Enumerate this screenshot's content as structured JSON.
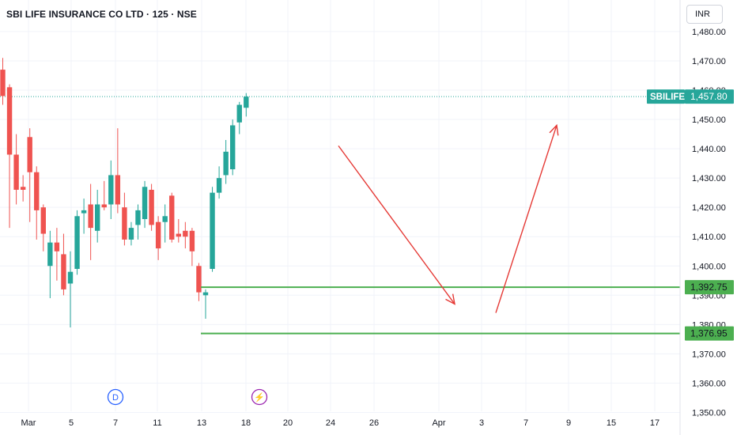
{
  "header": {
    "title": "SBI LIFE INSURANCE CO LTD · 125 · NSE",
    "currency": "INR"
  },
  "colors": {
    "up": "#26a69a",
    "down": "#ef5350",
    "level": "#4caf50",
    "arrow": "#e53935",
    "grid": "#f0f3fa",
    "axis_text": "#131722",
    "event_blue": "#2962ff",
    "event_purple": "#9c27b0"
  },
  "events": [
    {
      "icon": "dividend-event-icon",
      "label": "D"
    },
    {
      "icon": "lightning-event-icon",
      "label": "⚡"
    }
  ],
  "chart_data": {
    "type": "candlestick",
    "symbol": "SBILIFE",
    "last_price": "1,457.80",
    "ylim": [
      1345,
      1487
    ],
    "grid": true,
    "y_ticks": [
      {
        "value": 1350,
        "label": "1,350.00"
      },
      {
        "value": 1360,
        "label": "1,360.00"
      },
      {
        "value": 1370,
        "label": "1,370.00"
      },
      {
        "value": 1380,
        "label": "1,380.00"
      },
      {
        "value": 1390,
        "label": "1,390.00"
      },
      {
        "value": 1400,
        "label": "1,400.00"
      },
      {
        "value": 1410,
        "label": "1,410.00"
      },
      {
        "value": 1420,
        "label": "1,420.00"
      },
      {
        "value": 1430,
        "label": "1,430.00"
      },
      {
        "value": 1440,
        "label": "1,440.00"
      },
      {
        "value": 1450,
        "label": "1,450.00"
      },
      {
        "value": 1460,
        "label": "1,460.00"
      },
      {
        "value": 1470,
        "label": "1,470.00"
      },
      {
        "value": 1480,
        "label": "1,480.00"
      }
    ],
    "x_ticks": [
      "Mar",
      "5",
      "7",
      "11",
      "13",
      "18",
      "20",
      "24",
      "26",
      "Apr",
      "3",
      "7",
      "9",
      "15",
      "17"
    ],
    "horizontal_levels": [
      {
        "value": 1392.75,
        "label": "1,392.75"
      },
      {
        "value": 1376.95,
        "label": "1,376.95"
      }
    ],
    "arrows": [
      {
        "from": [
          1440,
          1441
        ],
        "to": [
          1457,
          1387
        ]
      },
      {
        "from": [
          1460,
          1384
        ],
        "to": [
          1467,
          1448
        ]
      }
    ],
    "candles": [
      {
        "o": 1467,
        "h": 1471,
        "l": 1455,
        "c": 1458
      },
      {
        "o": 1461,
        "h": 1462,
        "l": 1413,
        "c": 1438
      },
      {
        "o": 1438,
        "h": 1445,
        "l": 1421,
        "c": 1426
      },
      {
        "o": 1427,
        "h": 1431,
        "l": 1422,
        "c": 1426
      },
      {
        "o": 1444,
        "h": 1447,
        "l": 1415,
        "c": 1432
      },
      {
        "o": 1432,
        "h": 1434,
        "l": 1409,
        "c": 1419
      },
      {
        "o": 1420,
        "h": 1421,
        "l": 1405,
        "c": 1411
      },
      {
        "o": 1400,
        "h": 1412,
        "l": 1389,
        "c": 1408
      },
      {
        "o": 1408,
        "h": 1413,
        "l": 1395,
        "c": 1405
      },
      {
        "o": 1404,
        "h": 1411,
        "l": 1390,
        "c": 1392
      },
      {
        "o": 1394,
        "h": 1405,
        "l": 1379,
        "c": 1398
      },
      {
        "o": 1399,
        "h": 1419,
        "l": 1397,
        "c": 1417
      },
      {
        "o": 1418,
        "h": 1423,
        "l": 1411,
        "c": 1419
      },
      {
        "o": 1421,
        "h": 1428,
        "l": 1402,
        "c": 1413
      },
      {
        "o": 1412,
        "h": 1426,
        "l": 1408,
        "c": 1421
      },
      {
        "o": 1421,
        "h": 1429,
        "l": 1419,
        "c": 1420
      },
      {
        "o": 1421,
        "h": 1436,
        "l": 1416,
        "c": 1431
      },
      {
        "o": 1431,
        "h": 1447,
        "l": 1418,
        "c": 1421
      },
      {
        "o": 1420,
        "h": 1425,
        "l": 1407,
        "c": 1409
      },
      {
        "o": 1409,
        "h": 1415,
        "l": 1407,
        "c": 1413
      },
      {
        "o": 1414,
        "h": 1421,
        "l": 1409,
        "c": 1419
      },
      {
        "o": 1416,
        "h": 1429,
        "l": 1413,
        "c": 1427
      },
      {
        "o": 1426,
        "h": 1428,
        "l": 1412,
        "c": 1414
      },
      {
        "o": 1415,
        "h": 1417,
        "l": 1402,
        "c": 1406
      },
      {
        "o": 1415,
        "h": 1421,
        "l": 1408,
        "c": 1417
      },
      {
        "o": 1424,
        "h": 1425,
        "l": 1408,
        "c": 1409
      },
      {
        "o": 1411,
        "h": 1416,
        "l": 1408,
        "c": 1410
      },
      {
        "o": 1412,
        "h": 1415,
        "l": 1406,
        "c": 1410
      },
      {
        "o": 1412,
        "h": 1413,
        "l": 1400,
        "c": 1405
      },
      {
        "o": 1400,
        "h": 1401,
        "l": 1388,
        "c": 1391
      },
      {
        "o": 1390,
        "h": 1392,
        "l": 1382,
        "c": 1391
      },
      {
        "o": 1399,
        "h": 1427,
        "l": 1398,
        "c": 1425
      },
      {
        "o": 1425,
        "h": 1434,
        "l": 1423,
        "c": 1430
      },
      {
        "o": 1431,
        "h": 1443,
        "l": 1428,
        "c": 1439
      },
      {
        "o": 1433,
        "h": 1450,
        "l": 1431,
        "c": 1448
      },
      {
        "o": 1449,
        "h": 1456,
        "l": 1445,
        "c": 1455
      },
      {
        "o": 1454,
        "h": 1459,
        "l": 1451,
        "c": 1457.8
      }
    ]
  }
}
